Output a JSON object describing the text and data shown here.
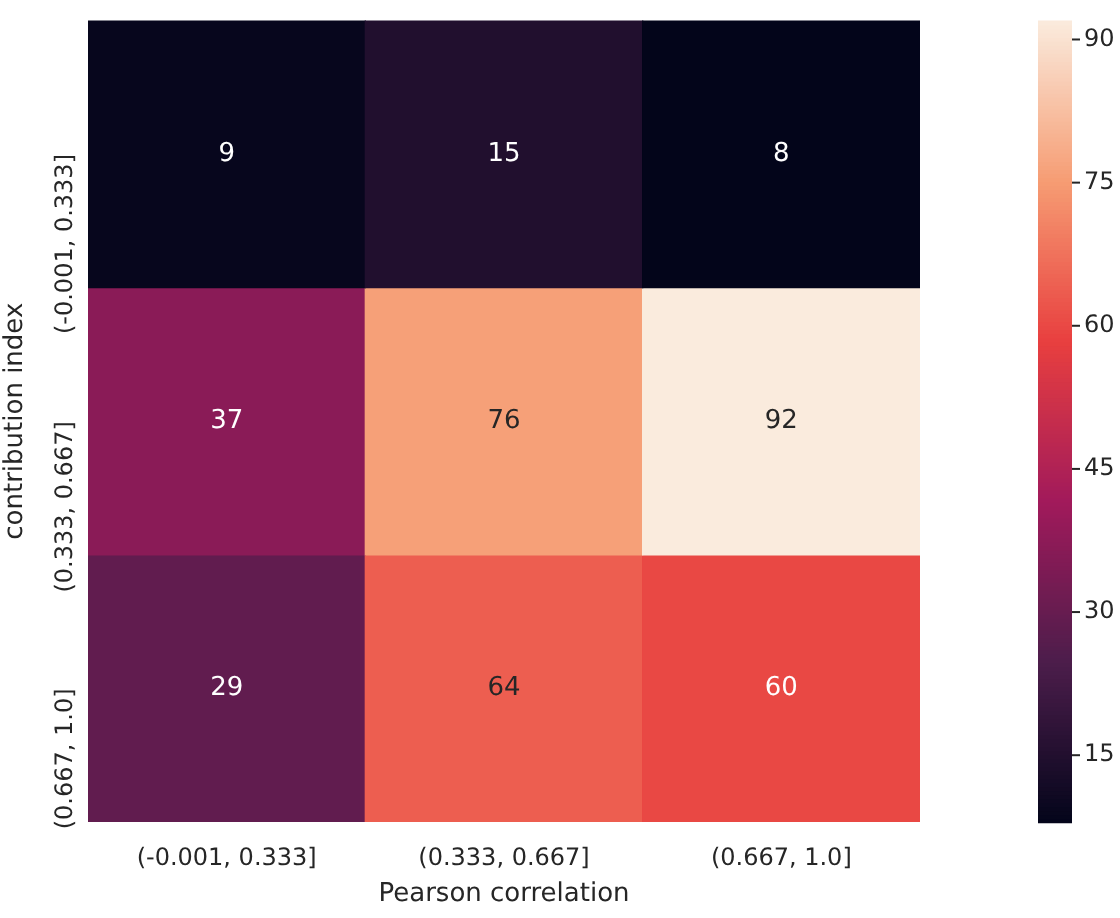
{
  "chart_data": {
    "type": "heatmap",
    "xlabel": "Pearson correlation",
    "ylabel": "contribution index",
    "categories": [
      "(-0.001, 0.333]",
      "(0.333, 0.667]",
      "(0.667, 1.0]"
    ],
    "y_categories": [
      "(-0.001, 0.333]",
      "(0.333, 0.667]",
      "(0.667, 1.0]"
    ],
    "cells": [
      [
        9,
        15,
        8
      ],
      [
        37,
        76,
        92
      ],
      [
        29,
        64,
        60
      ]
    ],
    "clim": [
      8,
      92
    ],
    "cticks": [
      15,
      30,
      45,
      60,
      75,
      90
    ],
    "data_labels": true
  }
}
